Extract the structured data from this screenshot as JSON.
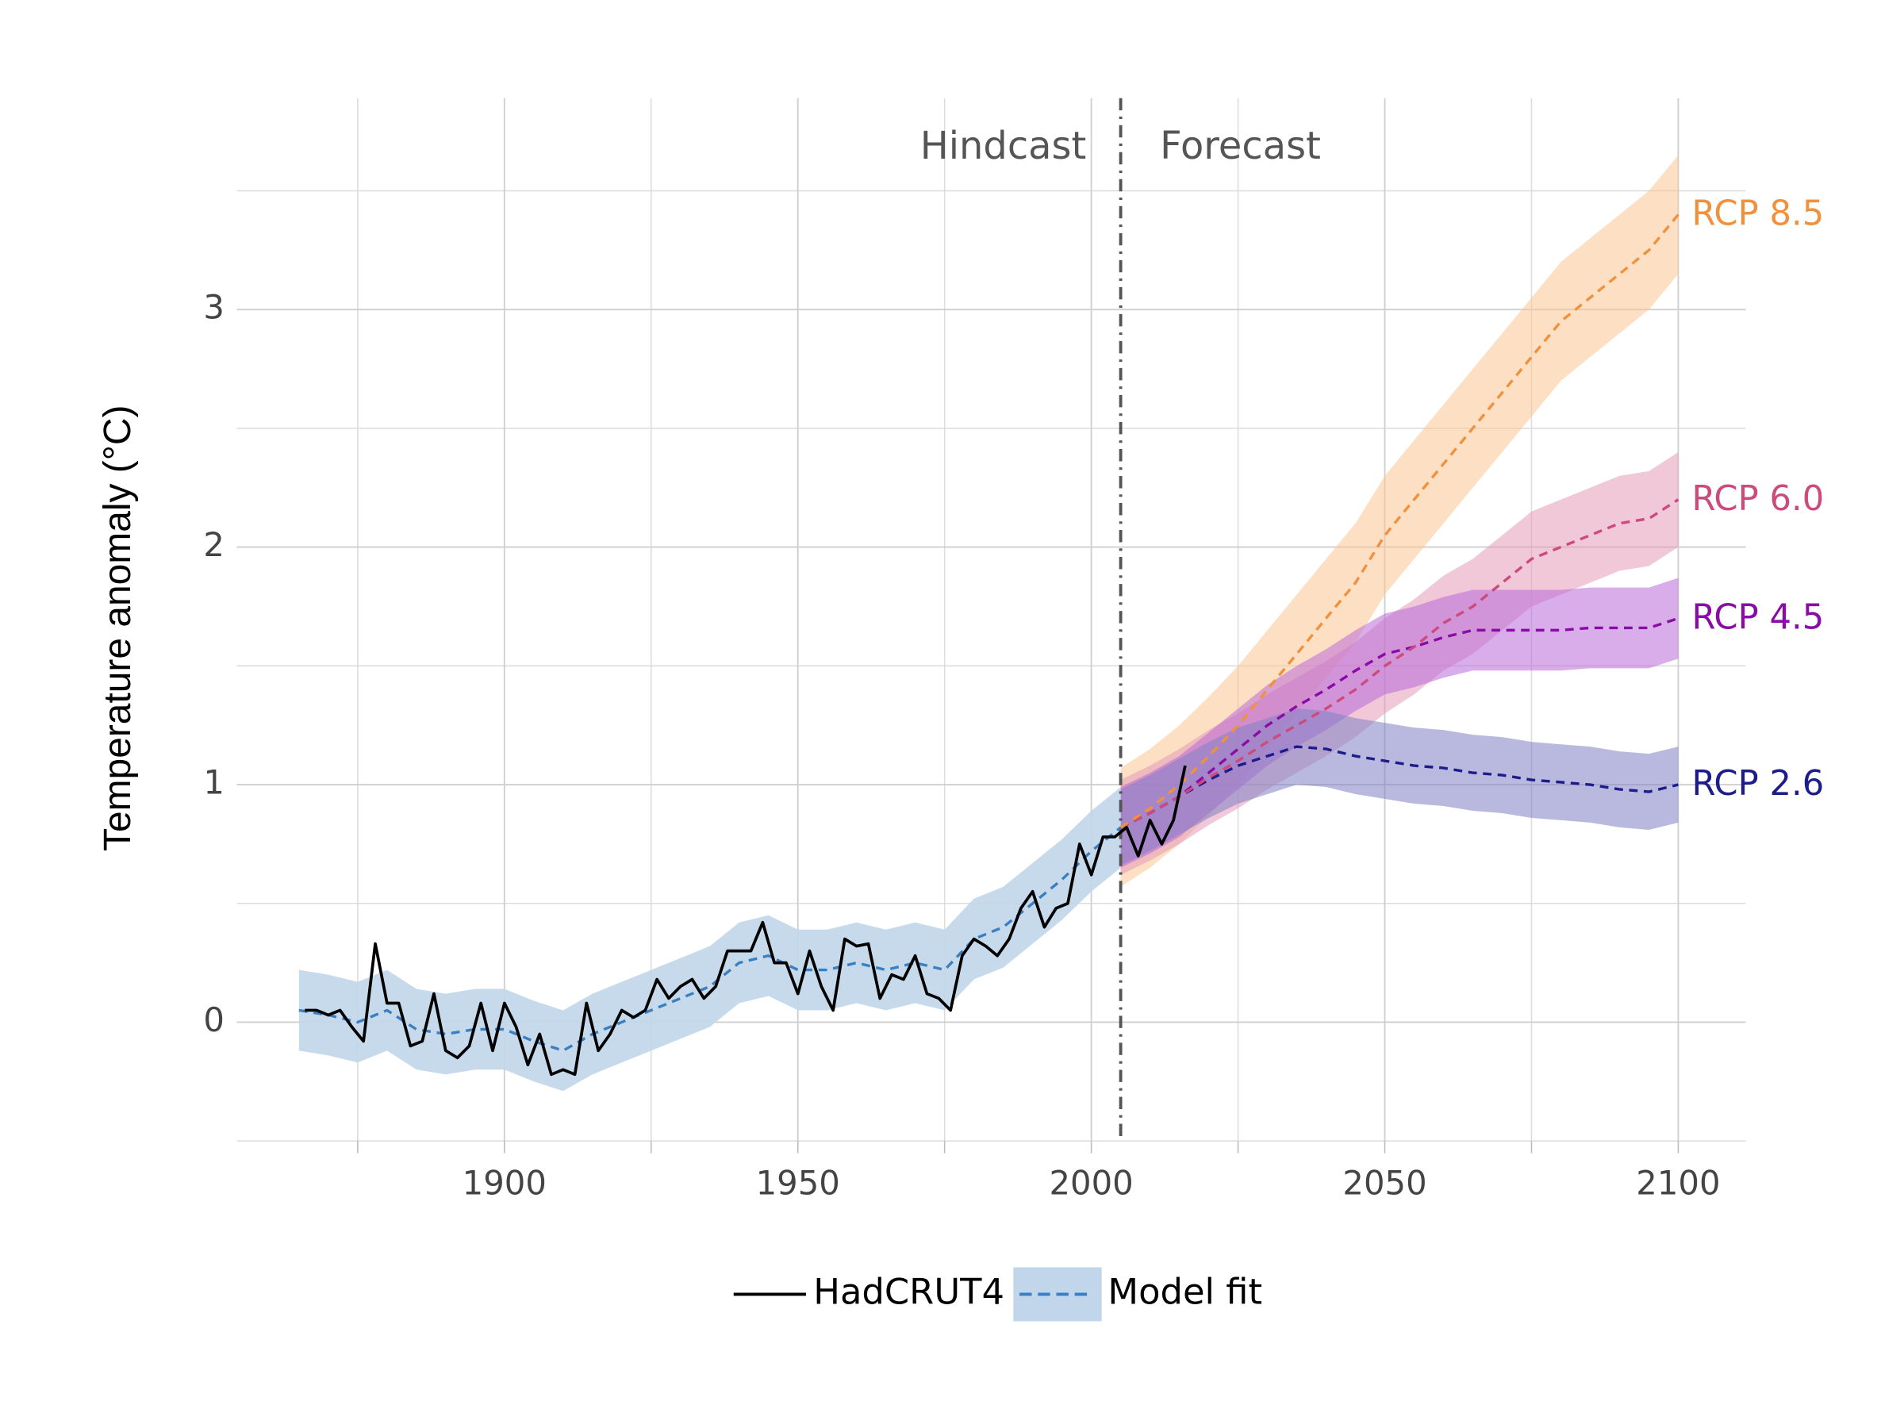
{
  "chart_data": {
    "type": "line",
    "y_label": "Temperature anomaly (°C)",
    "xlim": [
      1854.4,
      2111.5
    ],
    "ylim": [
      -0.5,
      3.89
    ],
    "xticks": [
      1900,
      1950,
      2000,
      2050,
      2100
    ],
    "xminor": [
      1875,
      1925,
      1975,
      2025,
      2075
    ],
    "yticks": [
      0,
      1,
      2,
      3
    ],
    "yminor": [
      -0.5,
      0.5,
      1.5,
      2.5,
      3.5
    ],
    "grid": true,
    "legend": "bottom",
    "forecast_start": 2005,
    "annotations": [
      "Hindcast",
      "Forecast"
    ],
    "series": [
      {
        "name": "HadCRUT4",
        "color": "#000000",
        "style": "solid",
        "x": [
          1866,
          1868,
          1870,
          1872,
          1874,
          1876,
          1878,
          1880,
          1882,
          1884,
          1886,
          1888,
          1890,
          1892,
          1894,
          1896,
          1898,
          1900,
          1902,
          1904,
          1906,
          1908,
          1910,
          1912,
          1914,
          1916,
          1918,
          1920,
          1922,
          1924,
          1926,
          1928,
          1930,
          1932,
          1934,
          1936,
          1938,
          1940,
          1942,
          1944,
          1946,
          1948,
          1950,
          1952,
          1954,
          1956,
          1958,
          1960,
          1962,
          1964,
          1966,
          1968,
          1970,
          1972,
          1974,
          1976,
          1978,
          1980,
          1982,
          1984,
          1986,
          1988,
          1990,
          1992,
          1994,
          1996,
          1998,
          2000,
          2002,
          2004,
          2006,
          2008,
          2010,
          2012,
          2014,
          2016
        ],
        "values": [
          0.05,
          0.05,
          0.03,
          0.05,
          -0.02,
          -0.08,
          0.33,
          0.08,
          0.08,
          -0.1,
          -0.08,
          0.12,
          -0.12,
          -0.15,
          -0.1,
          0.08,
          -0.12,
          0.08,
          -0.02,
          -0.18,
          -0.05,
          -0.22,
          -0.2,
          -0.22,
          0.08,
          -0.12,
          -0.05,
          0.05,
          0.02,
          0.05,
          0.18,
          0.1,
          0.15,
          0.18,
          0.1,
          0.15,
          0.3,
          0.3,
          0.3,
          0.42,
          0.25,
          0.25,
          0.12,
          0.3,
          0.15,
          0.05,
          0.35,
          0.32,
          0.33,
          0.1,
          0.2,
          0.18,
          0.28,
          0.12,
          0.1,
          0.05,
          0.28,
          0.35,
          0.32,
          0.28,
          0.35,
          0.48,
          0.55,
          0.4,
          0.48,
          0.5,
          0.75,
          0.62,
          0.78,
          0.78,
          0.82,
          0.7,
          0.85,
          0.75,
          0.85,
          1.08
        ]
      },
      {
        "name": "Model fit",
        "color": "#3a7fc1",
        "band_color": "#c1d6ea",
        "style": "dashed",
        "x": [
          1865,
          1870,
          1875,
          1880,
          1885,
          1890,
          1895,
          1900,
          1905,
          1910,
          1915,
          1920,
          1925,
          1930,
          1935,
          1940,
          1945,
          1950,
          1955,
          1960,
          1965,
          1970,
          1975,
          1980,
          1985,
          1990,
          1995,
          2000,
          2005
        ],
        "values": [
          0.05,
          0.03,
          0.0,
          0.05,
          -0.03,
          -0.05,
          -0.03,
          -0.03,
          -0.08,
          -0.12,
          -0.05,
          0.0,
          0.05,
          0.1,
          0.15,
          0.25,
          0.28,
          0.22,
          0.22,
          0.25,
          0.22,
          0.25,
          0.22,
          0.35,
          0.4,
          0.5,
          0.6,
          0.72,
          0.82
        ],
        "lower": [
          -0.12,
          -0.14,
          -0.17,
          -0.12,
          -0.2,
          -0.22,
          -0.2,
          -0.2,
          -0.25,
          -0.29,
          -0.22,
          -0.17,
          -0.12,
          -0.07,
          -0.02,
          0.08,
          0.11,
          0.05,
          0.05,
          0.08,
          0.05,
          0.08,
          0.05,
          0.18,
          0.23,
          0.33,
          0.43,
          0.55,
          0.65
        ],
        "upper": [
          0.22,
          0.2,
          0.17,
          0.22,
          0.14,
          0.12,
          0.14,
          0.14,
          0.09,
          0.05,
          0.12,
          0.17,
          0.22,
          0.27,
          0.32,
          0.42,
          0.45,
          0.39,
          0.39,
          0.42,
          0.39,
          0.42,
          0.39,
          0.52,
          0.57,
          0.67,
          0.77,
          0.89,
          0.99
        ]
      },
      {
        "name": "RCP 2.6",
        "color": "#1c1c8c",
        "band_color": "#7f7fc4",
        "style": "dashed",
        "direct_label": true,
        "x": [
          2005,
          2010,
          2015,
          2020,
          2025,
          2030,
          2035,
          2040,
          2045,
          2050,
          2055,
          2060,
          2065,
          2070,
          2075,
          2080,
          2085,
          2090,
          2095,
          2100
        ],
        "values": [
          0.82,
          0.88,
          0.95,
          1.02,
          1.08,
          1.12,
          1.16,
          1.15,
          1.12,
          1.1,
          1.08,
          1.07,
          1.05,
          1.04,
          1.02,
          1.01,
          1.0,
          0.98,
          0.97,
          1.0
        ],
        "lower": [
          0.66,
          0.72,
          0.79,
          0.86,
          0.92,
          0.96,
          1.0,
          0.99,
          0.96,
          0.94,
          0.92,
          0.91,
          0.89,
          0.88,
          0.86,
          0.85,
          0.84,
          0.82,
          0.81,
          0.84
        ],
        "upper": [
          0.98,
          1.04,
          1.11,
          1.18,
          1.24,
          1.28,
          1.32,
          1.31,
          1.28,
          1.26,
          1.24,
          1.23,
          1.21,
          1.2,
          1.18,
          1.17,
          1.16,
          1.14,
          1.13,
          1.16
        ]
      },
      {
        "name": "RCP 4.5",
        "color": "#8a0ca6",
        "band_color": "#b96ad8",
        "style": "dashed",
        "direct_label": true,
        "x": [
          2005,
          2010,
          2015,
          2020,
          2025,
          2030,
          2035,
          2040,
          2045,
          2050,
          2055,
          2060,
          2065,
          2070,
          2075,
          2080,
          2085,
          2090,
          2095,
          2100
        ],
        "values": [
          0.82,
          0.88,
          0.95,
          1.05,
          1.15,
          1.25,
          1.33,
          1.4,
          1.48,
          1.55,
          1.58,
          1.62,
          1.65,
          1.65,
          1.65,
          1.65,
          1.66,
          1.66,
          1.66,
          1.7
        ],
        "lower": [
          0.65,
          0.71,
          0.78,
          0.88,
          0.98,
          1.08,
          1.16,
          1.23,
          1.31,
          1.38,
          1.41,
          1.45,
          1.48,
          1.48,
          1.48,
          1.48,
          1.49,
          1.49,
          1.49,
          1.53
        ],
        "upper": [
          0.99,
          1.05,
          1.12,
          1.22,
          1.32,
          1.42,
          1.5,
          1.57,
          1.65,
          1.72,
          1.75,
          1.79,
          1.82,
          1.82,
          1.82,
          1.82,
          1.83,
          1.83,
          1.83,
          1.87
        ]
      },
      {
        "name": "RCP 6.0",
        "color": "#cc4a7c",
        "band_color": "#e49ab8",
        "style": "dashed",
        "direct_label": true,
        "x": [
          2005,
          2010,
          2015,
          2020,
          2025,
          2030,
          2035,
          2040,
          2045,
          2050,
          2055,
          2060,
          2065,
          2070,
          2075,
          2080,
          2085,
          2090,
          2095,
          2100
        ],
        "values": [
          0.82,
          0.88,
          0.95,
          1.03,
          1.1,
          1.18,
          1.25,
          1.32,
          1.4,
          1.5,
          1.58,
          1.68,
          1.75,
          1.85,
          1.95,
          2.0,
          2.05,
          2.1,
          2.12,
          2.2
        ],
        "lower": [
          0.62,
          0.68,
          0.75,
          0.83,
          0.9,
          0.98,
          1.05,
          1.12,
          1.2,
          1.3,
          1.38,
          1.48,
          1.55,
          1.65,
          1.75,
          1.8,
          1.85,
          1.9,
          1.92,
          2.0
        ],
        "upper": [
          1.02,
          1.08,
          1.15,
          1.23,
          1.3,
          1.38,
          1.45,
          1.52,
          1.6,
          1.7,
          1.78,
          1.88,
          1.95,
          2.05,
          2.15,
          2.2,
          2.25,
          2.3,
          2.32,
          2.4
        ]
      },
      {
        "name": "RCP 8.5",
        "color": "#f0913e",
        "band_color": "#fcc494",
        "style": "dashed",
        "direct_label": true,
        "x": [
          2005,
          2010,
          2015,
          2020,
          2025,
          2030,
          2035,
          2040,
          2045,
          2050,
          2055,
          2060,
          2065,
          2070,
          2075,
          2080,
          2085,
          2090,
          2095,
          2100
        ],
        "values": [
          0.82,
          0.9,
          1.0,
          1.12,
          1.25,
          1.4,
          1.55,
          1.7,
          1.85,
          2.05,
          2.2,
          2.35,
          2.5,
          2.65,
          2.8,
          2.95,
          3.05,
          3.15,
          3.25,
          3.4
        ],
        "lower": [
          0.57,
          0.65,
          0.75,
          0.87,
          1.0,
          1.15,
          1.3,
          1.45,
          1.6,
          1.8,
          1.95,
          2.1,
          2.25,
          2.4,
          2.55,
          2.7,
          2.8,
          2.9,
          3.0,
          3.15
        ],
        "upper": [
          1.07,
          1.15,
          1.25,
          1.37,
          1.5,
          1.65,
          1.8,
          1.95,
          2.1,
          2.3,
          2.45,
          2.6,
          2.75,
          2.9,
          3.05,
          3.2,
          3.3,
          3.4,
          3.5,
          3.65
        ]
      }
    ]
  }
}
